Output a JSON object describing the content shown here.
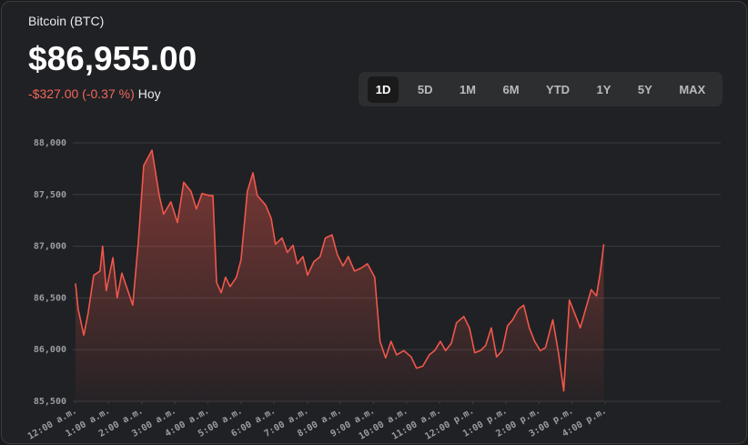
{
  "header": {
    "name": "Bitcoin (BTC)",
    "price": "$86,955.00",
    "change": "-$327.00 (-0.37 %)",
    "period": "Hoy",
    "ranges": [
      "1D",
      "5D",
      "1M",
      "6M",
      "YTD",
      "1Y",
      "5Y",
      "MAX"
    ],
    "selected_range": 0
  },
  "chart_data": {
    "type": "area",
    "color": "#f0574b",
    "x": [
      0,
      0.08,
      0.25,
      0.38,
      0.55,
      0.74,
      0.82,
      0.93,
      1.13,
      1.26,
      1.4,
      1.57,
      1.73,
      1.9,
      2.06,
      2.31,
      2.53,
      2.66,
      2.88,
      3.08,
      3.27,
      3.49,
      3.65,
      3.82,
      4.04,
      4.15,
      4.26,
      4.4,
      4.53,
      4.67,
      4.86,
      5,
      5.19,
      5.36,
      5.49,
      5.74,
      5.91,
      6.04,
      6.24,
      6.4,
      6.57,
      6.7,
      6.87,
      7.01,
      7.2,
      7.39,
      7.55,
      7.75,
      7.91,
      8.08,
      8.24,
      8.43,
      8.63,
      8.82,
      9.04,
      9.2,
      9.37,
      9.53,
      9.7,
      9.92,
      10.14,
      10.3,
      10.49,
      10.69,
      10.85,
      11.02,
      11.18,
      11.35,
      11.51,
      11.73,
      11.9,
      12.06,
      12.23,
      12.39,
      12.56,
      12.72,
      12.89,
      13.05,
      13.21,
      13.38,
      13.54,
      13.71,
      13.87,
      14.04,
      14.2,
      14.42,
      14.59,
      14.75,
      14.92,
      15.08,
      15.25,
      15.41,
      15.58,
      15.74,
      15.85,
      15.96
    ],
    "values": [
      86640,
      86390,
      86140,
      86350,
      86720,
      86760,
      87000,
      86570,
      86890,
      86500,
      86740,
      86580,
      86430,
      87050,
      87780,
      87930,
      87490,
      87310,
      87430,
      87230,
      87620,
      87530,
      87360,
      87510,
      87490,
      87490,
      86650,
      86550,
      86700,
      86610,
      86700,
      86870,
      87530,
      87710,
      87490,
      87400,
      87270,
      87020,
      87080,
      86940,
      87010,
      86830,
      86900,
      86720,
      86850,
      86900,
      87080,
      87110,
      86920,
      86810,
      86900,
      86760,
      86790,
      86830,
      86700,
      86080,
      85920,
      86080,
      85950,
      85990,
      85930,
      85820,
      85840,
      85950,
      85990,
      86080,
      85990,
      86060,
      86260,
      86320,
      86210,
      85970,
      85990,
      86040,
      86210,
      85930,
      85990,
      86230,
      86290,
      86390,
      86430,
      86210,
      86080,
      85990,
      86020,
      86290,
      85970,
      85600,
      86480,
      86350,
      86210,
      86390,
      86580,
      86520,
      86740,
      87020
    ],
    "xlim": [
      0,
      16
    ],
    "xticks": [
      {
        "value": 0,
        "label": "12:00 a.m."
      },
      {
        "value": 1,
        "label": "1:00 a.m."
      },
      {
        "value": 2,
        "label": "2:00 a.m."
      },
      {
        "value": 3,
        "label": "3:00 a.m."
      },
      {
        "value": 4,
        "label": "4:00 a.m."
      },
      {
        "value": 5,
        "label": "5:00 a.m."
      },
      {
        "value": 6,
        "label": "6:00 a.m."
      },
      {
        "value": 7,
        "label": "7:00 a.m."
      },
      {
        "value": 8,
        "label": "8:00 a.m."
      },
      {
        "value": 9,
        "label": "9:00 a.m."
      },
      {
        "value": 10,
        "label": "10:00 a.m."
      },
      {
        "value": 11,
        "label": "11:00 a.m."
      },
      {
        "value": 12,
        "label": "12:00 p.m."
      },
      {
        "value": 13,
        "label": "1:00 p.m."
      },
      {
        "value": 14,
        "label": "2:00 p.m."
      },
      {
        "value": 15,
        "label": "3:00 p.m."
      },
      {
        "value": 16,
        "label": "4:00 p.m."
      }
    ],
    "ylim": [
      85500,
      88000
    ],
    "yticks": [
      {
        "value": 85500,
        "label": "85,500"
      },
      {
        "value": 86000,
        "label": "86,000"
      },
      {
        "value": 86500,
        "label": "86,500"
      },
      {
        "value": 87000,
        "label": "87,000"
      },
      {
        "value": 87500,
        "label": "87,500"
      },
      {
        "value": 88000,
        "label": "88,000"
      }
    ],
    "grid": true
  }
}
